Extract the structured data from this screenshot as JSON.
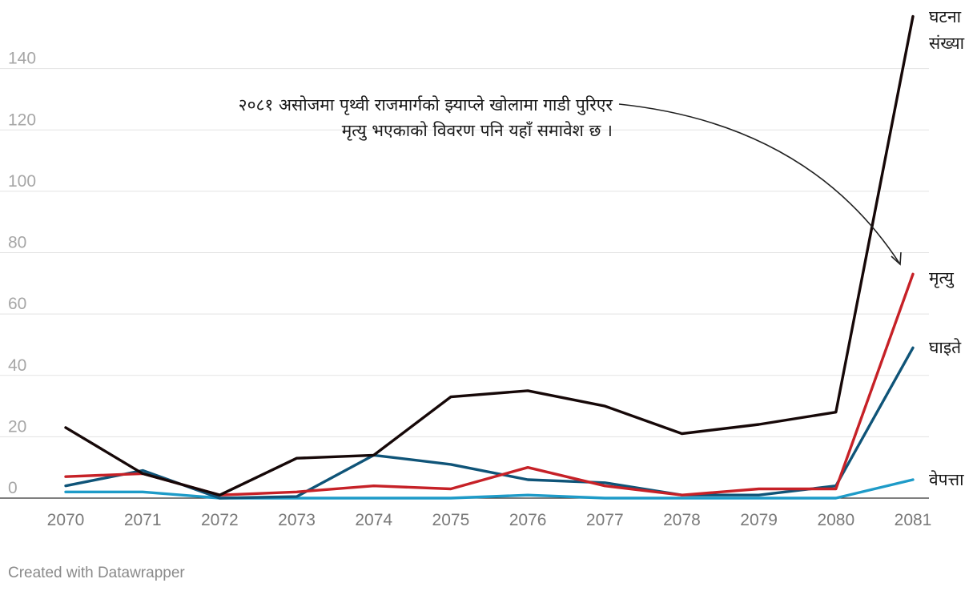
{
  "chart_data": {
    "type": "line",
    "x": [
      "2070",
      "2071",
      "2072",
      "2073",
      "2074",
      "2075",
      "2076",
      "2077",
      "2078",
      "2079",
      "2080",
      "2081"
    ],
    "ylim": [
      0,
      160
    ],
    "yticks": [
      "0",
      "20",
      "40",
      "60",
      "80",
      "100",
      "120",
      "140"
    ],
    "grid": true,
    "series": [
      {
        "name": "वेपत्ता",
        "color": "#1e9bc8",
        "values": [
          2,
          2,
          0,
          0,
          0,
          0,
          1,
          0,
          0,
          0,
          0,
          6
        ]
      },
      {
        "name": "घाइते",
        "color": "#0f5478",
        "values": [
          4,
          9,
          0,
          0.5,
          14,
          11,
          6,
          5,
          1,
          1,
          4,
          49
        ]
      },
      {
        "name": "मृत्यु",
        "color": "#c62127",
        "values": [
          7,
          8,
          1,
          2,
          4,
          3,
          10,
          4,
          1,
          3,
          3,
          73
        ]
      },
      {
        "name": "घटना संख्या",
        "color": "#160808",
        "values": [
          23,
          8,
          1,
          13,
          14,
          33,
          35,
          30,
          21,
          24,
          28,
          157
        ]
      }
    ],
    "labels": {
      "incidents_line1": "घटना",
      "incidents_line2": "संख्या",
      "deaths": "मृत्यु",
      "injured": "घाइते",
      "missing": "वेपत्ता"
    },
    "annotation": {
      "line1": "२०८१ असोजमा पृथ्वी राजमार्गको झ्याप्ले खोलामा गाडी पुरिएर",
      "line2": "मृत्यु भएकाको विवरण पनि यहाँ समावेश छ ।"
    }
  },
  "footer": {
    "credit": "Created with Datawrapper"
  }
}
